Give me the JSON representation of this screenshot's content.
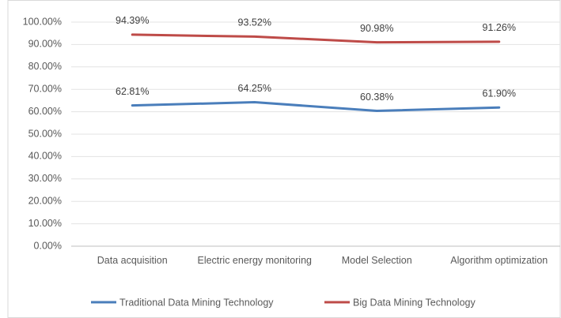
{
  "chart_data": {
    "type": "line",
    "categories": [
      "Data acquisition",
      "Electric energy monitoring",
      "Model Selection",
      "Algorithm optimization"
    ],
    "series": [
      {
        "name": "Traditional Data Mining Technology",
        "color": "#4a7ebb",
        "values": [
          62.81,
          64.25,
          60.38,
          61.9
        ],
        "value_labels": [
          "62.81%",
          "64.25%",
          "60.38%",
          "61.90%"
        ]
      },
      {
        "name": "Big Data Mining Technology",
        "color": "#be4b48",
        "values": [
          94.39,
          93.52,
          90.98,
          91.26
        ],
        "value_labels": [
          "94.39%",
          "93.52%",
          "90.98%",
          "91.26%"
        ]
      }
    ],
    "ylim": [
      0,
      100
    ],
    "yticks": [
      {
        "value": 0,
        "label": "0.00%"
      },
      {
        "value": 10,
        "label": "10.00%"
      },
      {
        "value": 20,
        "label": "20.00%"
      },
      {
        "value": 30,
        "label": "30.00%"
      },
      {
        "value": 40,
        "label": "40.00%"
      },
      {
        "value": 50,
        "label": "50.00%"
      },
      {
        "value": 60,
        "label": "60.00%"
      },
      {
        "value": 70,
        "label": "70.00%"
      },
      {
        "value": 80,
        "label": "80.00%"
      },
      {
        "value": 90,
        "label": "90.00%"
      },
      {
        "value": 100,
        "label": "100.00%"
      }
    ],
    "grid": true
  }
}
